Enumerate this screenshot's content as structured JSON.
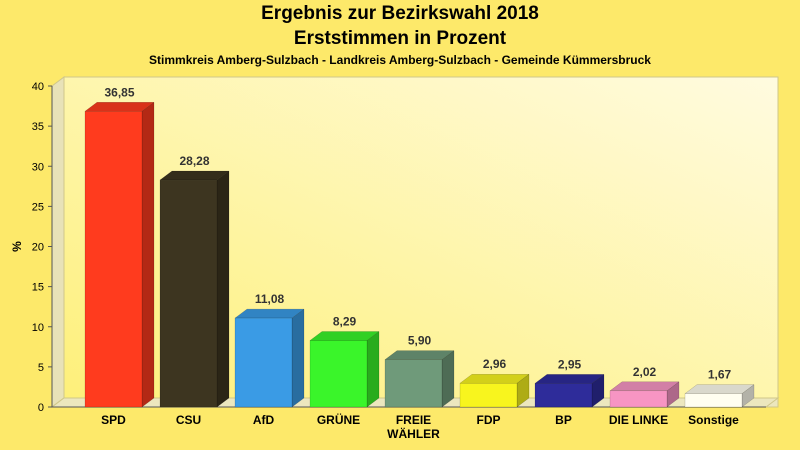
{
  "title": "Ergebnis zur Bezirkswahl 2018",
  "subtitle": "Erststimmen in Prozent",
  "caption": "Stimmkreis Amberg-Sulzbach - Landkreis Amberg-Sulzbach - Gemeinde Kümmersbruck",
  "colors": {
    "background": "#fde96a",
    "plot_area": "#fff7a8"
  },
  "chart_data": {
    "type": "bar",
    "ylabel": "%",
    "ylim": [
      0,
      40
    ],
    "yticks": [
      0,
      5,
      10,
      15,
      20,
      25,
      30,
      35,
      40
    ],
    "grid": false,
    "categories": [
      "SPD",
      "CSU",
      "AfD",
      "GRÜNE",
      "FREIE WÄHLER",
      "FDP",
      "BP",
      "DIE LINKE",
      "Sonstige"
    ],
    "category_lines": [
      [
        "SPD"
      ],
      [
        "CSU"
      ],
      [
        "AfD"
      ],
      [
        "GRÜNE"
      ],
      [
        "FREIE",
        "WÄHLER"
      ],
      [
        "FDP"
      ],
      [
        "BP"
      ],
      [
        "DIE LINKE"
      ],
      [
        "Sonstige"
      ]
    ],
    "values": [
      36.85,
      28.28,
      11.08,
      8.29,
      5.9,
      2.96,
      2.95,
      2.02,
      1.67
    ],
    "value_labels": [
      "36,85",
      "28,28",
      "11,08",
      "8,29",
      "5,90",
      "2,96",
      "2,95",
      "2,02",
      "1,67"
    ],
    "bar_colors": [
      "#ff3b1e",
      "#3d3520",
      "#3a9be5",
      "#3af52a",
      "#6f9a7a",
      "#f8f51e",
      "#2e2c9a",
      "#f795c3",
      "#fffef0"
    ]
  }
}
